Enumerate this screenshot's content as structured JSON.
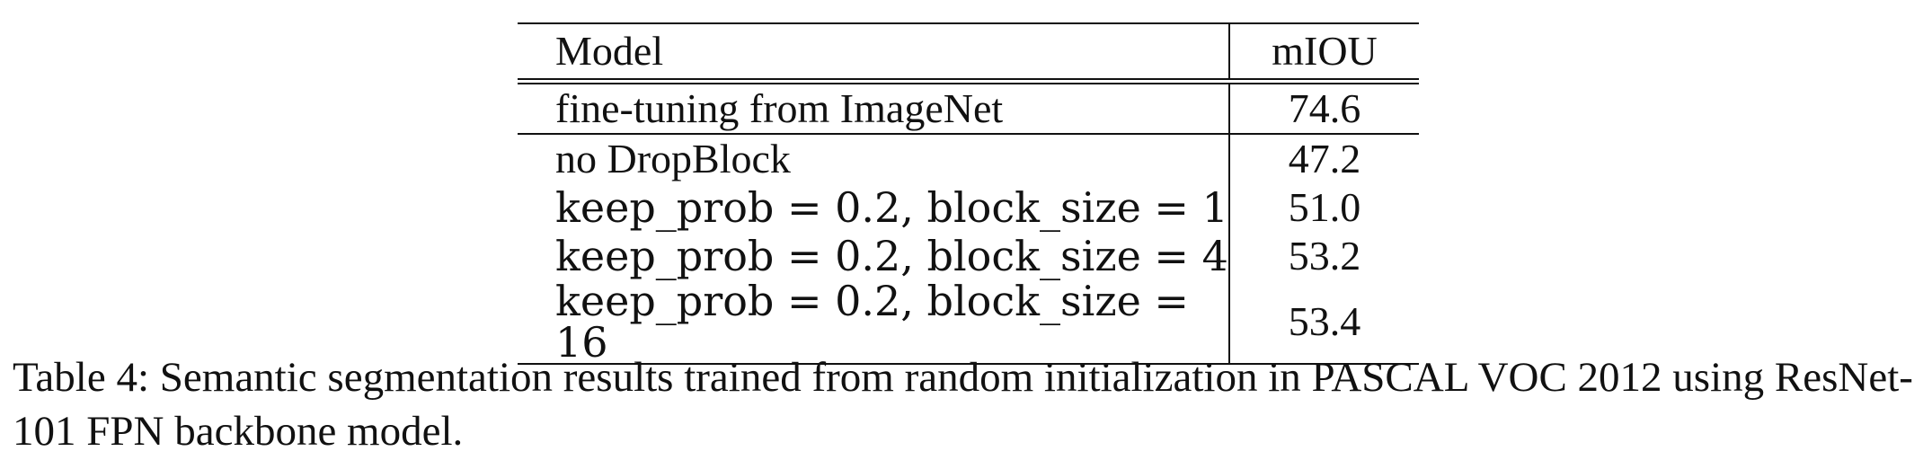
{
  "table": {
    "headers": {
      "model": "Model",
      "miou": "mIOU"
    },
    "rows": [
      {
        "model": "fine-tuning from ImageNet",
        "miou": "74.6"
      },
      {
        "model": "no DropBlock",
        "miou": "47.2"
      },
      {
        "model": "keep_prob = 0.2, block_size = 1",
        "miou": "51.0"
      },
      {
        "model": "keep_prob = 0.2, block_size = 4",
        "miou": "53.2"
      },
      {
        "model": "keep_prob = 0.2, block_size = 16",
        "miou": "53.4"
      }
    ]
  },
  "caption": "Table 4: Semantic segmentation results trained from random initialization in PASCAL VOC 2012 using ResNet-101 FPN backbone model."
}
